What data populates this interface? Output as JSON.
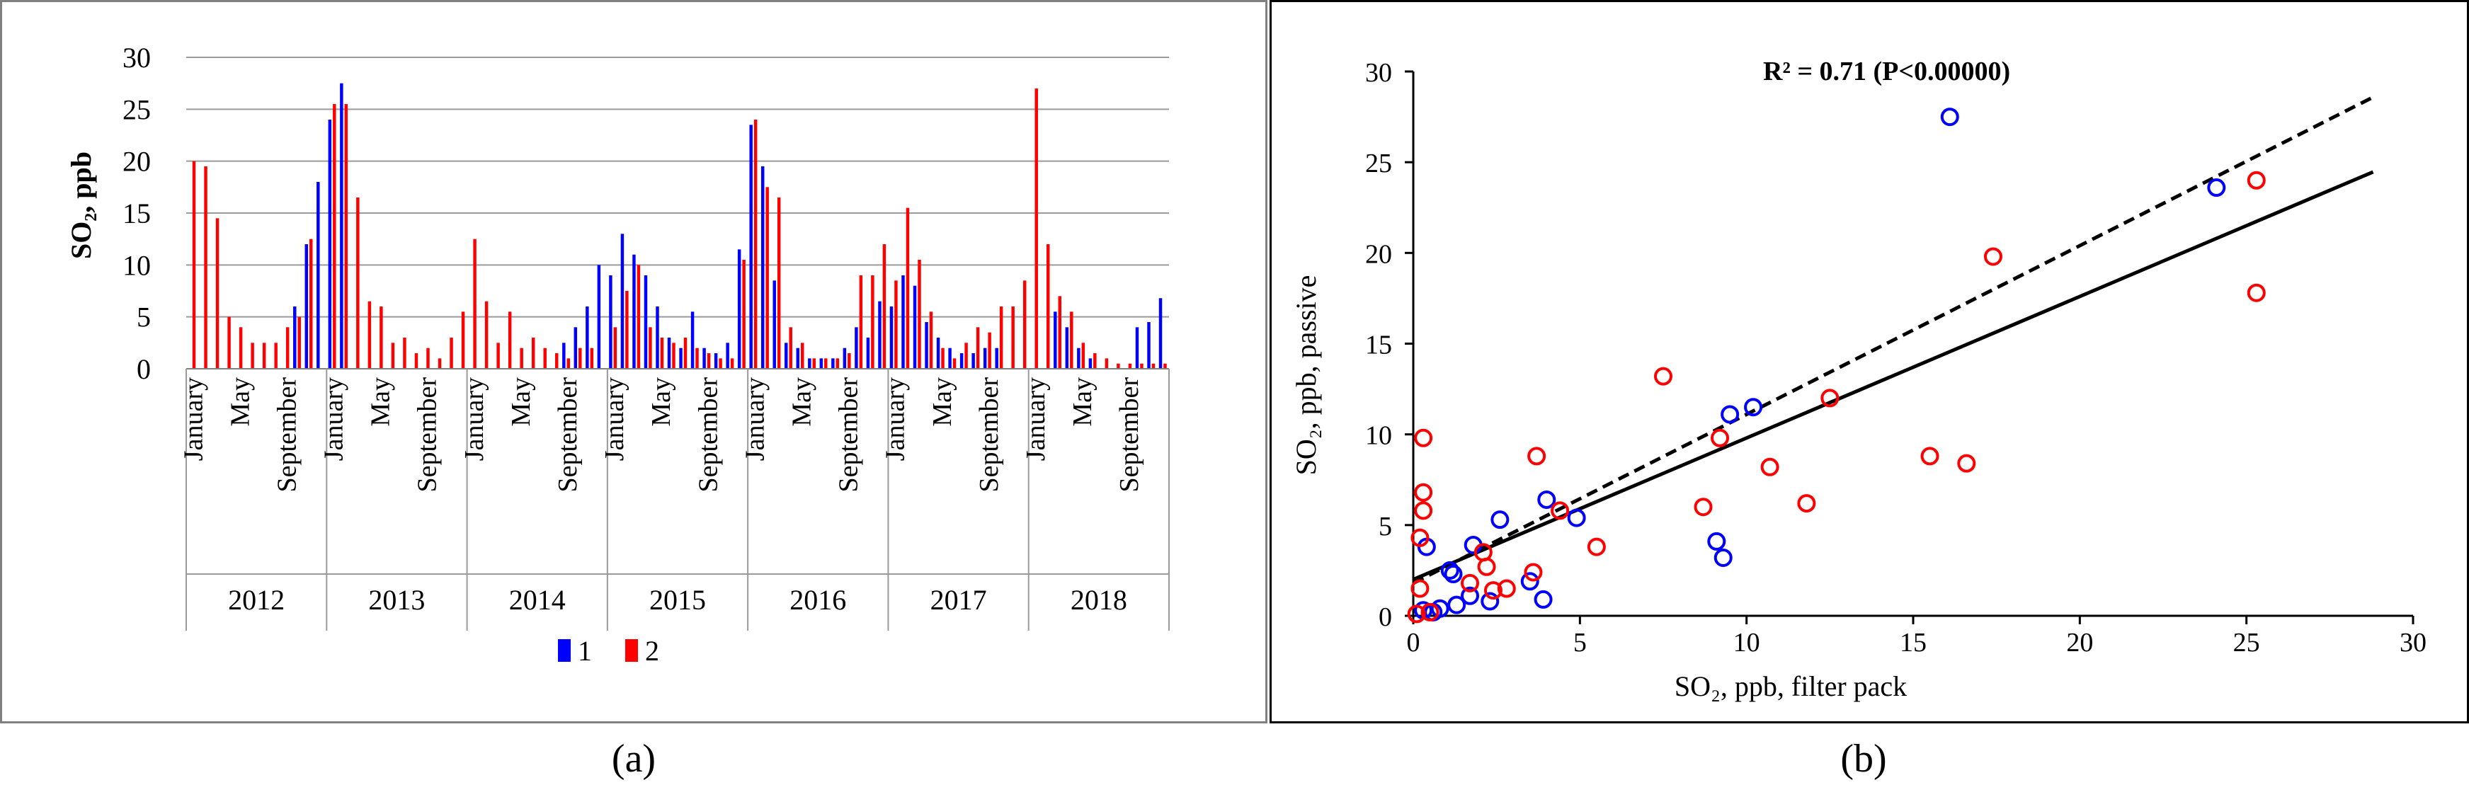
{
  "panels": {
    "a": {
      "caption": "(a)"
    },
    "b": {
      "caption": "(b)"
    }
  },
  "chart_data": [
    {
      "type": "bar",
      "ylabel": "SO₂, ppb",
      "ylim": [
        0,
        30
      ],
      "yticks": [
        "0",
        "5",
        "10",
        "15",
        "20",
        "25",
        "30"
      ],
      "grid": true,
      "legend": "bottom-center",
      "years": [
        "2012",
        "2013",
        "2014",
        "2015",
        "2016",
        "2017",
        "2018"
      ],
      "month_labels": [
        "January",
        "May",
        "September"
      ],
      "series": [
        {
          "name": "1",
          "color": "#0000ff",
          "values": [
            0,
            0,
            0,
            0,
            0,
            0,
            0,
            0,
            0,
            6,
            12,
            18,
            24,
            27.5,
            0,
            0,
            0,
            0,
            0,
            0,
            0,
            0,
            0,
            0,
            0,
            0,
            0,
            0,
            0,
            0,
            0,
            0,
            2.5,
            4,
            6,
            10,
            9,
            13,
            11,
            9,
            6,
            3,
            2,
            5.5,
            2,
            1.5,
            2.5,
            11.5,
            23.5,
            19.5,
            8.5,
            2.5,
            2,
            1,
            1,
            1,
            2,
            4,
            3,
            6.5,
            6,
            9,
            8,
            4.5,
            3,
            2,
            1.5,
            1.5,
            2,
            2,
            0,
            0,
            0,
            0,
            5.5,
            4,
            2,
            1,
            0,
            0,
            0,
            4,
            4.5,
            6.8
          ]
        },
        {
          "name": "2",
          "color": "#ff0000",
          "values": [
            20,
            19.5,
            14.5,
            5,
            4,
            2.5,
            2.5,
            2.5,
            4,
            5,
            12.5,
            0,
            25.5,
            25.5,
            16.5,
            6.5,
            6,
            2.5,
            3,
            1.5,
            2,
            1,
            3,
            5.5,
            12.5,
            6.5,
            2.5,
            5.5,
            2,
            3,
            2,
            1.5,
            1,
            2,
            2,
            0,
            4,
            7.5,
            10,
            4,
            3,
            2.5,
            3,
            2,
            1.5,
            1,
            1,
            10.5,
            24,
            17.5,
            16.5,
            4,
            2.5,
            1,
            1,
            1,
            1.5,
            9,
            9,
            12,
            8.5,
            15.5,
            10.5,
            5.5,
            2,
            1,
            2.5,
            4,
            3.5,
            6,
            6,
            8.5,
            27,
            12,
            7,
            5.5,
            2.5,
            1.5,
            1,
            0.5,
            0.5,
            0.5,
            0.5,
            0.5
          ]
        }
      ]
    },
    {
      "type": "scatter",
      "annotation": "R² = 0.71 (P<0.00000)",
      "xlabel": "SO₂, ppb, filter pack",
      "ylabel": "SO₂, ppb, passive",
      "xlim": [
        0,
        30
      ],
      "ylim": [
        0,
        30
      ],
      "xticks": [
        "0",
        "5",
        "10",
        "15",
        "20",
        "25",
        "30"
      ],
      "yticks": [
        "0",
        "5",
        "10",
        "15",
        "20",
        "25",
        "30"
      ],
      "series": [
        {
          "name": "blue",
          "color": "#0000ff",
          "points": [
            [
              0.3,
              0.3
            ],
            [
              0.4,
              3.8
            ],
            [
              0.6,
              0.2
            ],
            [
              0.8,
              0.4
            ],
            [
              1.1,
              2.5
            ],
            [
              1.2,
              2.3
            ],
            [
              1.3,
              0.6
            ],
            [
              1.7,
              1.1
            ],
            [
              1.8,
              3.9
            ],
            [
              2.3,
              0.8
            ],
            [
              2.6,
              5.3
            ],
            [
              3.5,
              1.9
            ],
            [
              3.9,
              0.9
            ],
            [
              4.0,
              6.4
            ],
            [
              4.9,
              5.4
            ],
            [
              9.1,
              4.1
            ],
            [
              9.3,
              3.2
            ],
            [
              9.5,
              11.1
            ],
            [
              10.2,
              11.5
            ],
            [
              16.1,
              27.5
            ],
            [
              24.1,
              23.6
            ]
          ]
        },
        {
          "name": "red",
          "color": "#ff0000",
          "points": [
            [
              0.1,
              0.1
            ],
            [
              0.2,
              1.5
            ],
            [
              0.2,
              4.3
            ],
            [
              0.3,
              5.8
            ],
            [
              0.3,
              6.8
            ],
            [
              0.3,
              9.8
            ],
            [
              0.5,
              0.2
            ],
            [
              1.7,
              1.8
            ],
            [
              2.1,
              3.5
            ],
            [
              2.2,
              2.7
            ],
            [
              2.4,
              1.4
            ],
            [
              2.8,
              1.5
            ],
            [
              3.6,
              2.4
            ],
            [
              3.7,
              8.8
            ],
            [
              4.4,
              5.8
            ],
            [
              5.5,
              3.8
            ],
            [
              7.5,
              13.2
            ],
            [
              8.7,
              6.0
            ],
            [
              9.2,
              9.8
            ],
            [
              10.7,
              8.2
            ],
            [
              11.8,
              6.2
            ],
            [
              12.5,
              12.0
            ],
            [
              15.5,
              8.8
            ],
            [
              16.6,
              8.4
            ],
            [
              17.4,
              19.8
            ],
            [
              25.3,
              17.8
            ],
            [
              25.3,
              24.0
            ]
          ]
        }
      ],
      "lines": [
        {
          "name": "regression-solid",
          "style": "solid",
          "slope": 0.78,
          "intercept": 2.0
        },
        {
          "name": "regression-dashed",
          "style": "dashed",
          "slope": 0.93,
          "intercept": 1.8
        }
      ]
    }
  ]
}
